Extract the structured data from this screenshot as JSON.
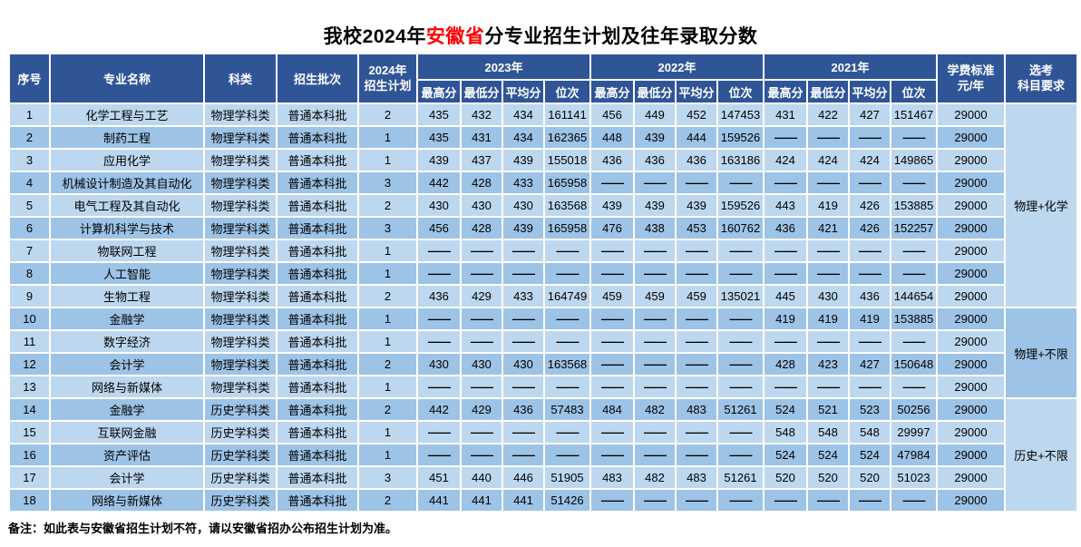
{
  "title": {
    "prefix": "我校2024年",
    "highlight": "安徽省",
    "suffix": "分专业招生计划及往年录取分数"
  },
  "header": {
    "no": "序号",
    "major": "专业名称",
    "category": "科类",
    "batch": "招生批次",
    "plan2024_line1": "2024年",
    "plan2024_line2": "招生计划",
    "year2023": "2023年",
    "year2022": "2022年",
    "year2021": "2021年",
    "sub": [
      "最高分",
      "最低分",
      "平均分",
      "位次"
    ],
    "fee_line1": "学费标准",
    "fee_line2": "元/年",
    "subject_line1": "选考",
    "subject_line2": "科目要求"
  },
  "dash": "——",
  "rows": [
    {
      "no": "1",
      "major": "化学工程与工艺",
      "category": "物理学科类",
      "batch": "普通本科批",
      "plan": "2",
      "s2023": [
        "435",
        "432",
        "434",
        "161141"
      ],
      "s2022": [
        "456",
        "449",
        "452",
        "147453"
      ],
      "s2021": [
        "431",
        "422",
        "427",
        "151467"
      ],
      "fee": "29000"
    },
    {
      "no": "2",
      "major": "制药工程",
      "category": "物理学科类",
      "batch": "普通本科批",
      "plan": "1",
      "s2023": [
        "435",
        "431",
        "434",
        "162365"
      ],
      "s2022": [
        "448",
        "439",
        "444",
        "159526"
      ],
      "s2021": [
        "——",
        "——",
        "——",
        "——"
      ],
      "fee": "29000"
    },
    {
      "no": "3",
      "major": "应用化学",
      "category": "物理学科类",
      "batch": "普通本科批",
      "plan": "1",
      "s2023": [
        "439",
        "437",
        "439",
        "155018"
      ],
      "s2022": [
        "436",
        "436",
        "436",
        "163186"
      ],
      "s2021": [
        "424",
        "424",
        "424",
        "149865"
      ],
      "fee": "29000"
    },
    {
      "no": "4",
      "major": "机械设计制造及其自动化",
      "category": "物理学科类",
      "batch": "普通本科批",
      "plan": "3",
      "s2023": [
        "442",
        "428",
        "433",
        "165958"
      ],
      "s2022": [
        "——",
        "——",
        "——",
        "——"
      ],
      "s2021": [
        "——",
        "——",
        "——",
        "——"
      ],
      "fee": "29000"
    },
    {
      "no": "5",
      "major": "电气工程及其自动化",
      "category": "物理学科类",
      "batch": "普通本科批",
      "plan": "2",
      "s2023": [
        "430",
        "430",
        "430",
        "163568"
      ],
      "s2022": [
        "439",
        "439",
        "439",
        "159526"
      ],
      "s2021": [
        "443",
        "419",
        "426",
        "153885"
      ],
      "fee": "29000"
    },
    {
      "no": "6",
      "major": "计算机科学与技术",
      "category": "物理学科类",
      "batch": "普通本科批",
      "plan": "3",
      "s2023": [
        "456",
        "428",
        "439",
        "165958"
      ],
      "s2022": [
        "476",
        "438",
        "453",
        "160762"
      ],
      "s2021": [
        "436",
        "421",
        "426",
        "152257"
      ],
      "fee": "29000"
    },
    {
      "no": "7",
      "major": "物联网工程",
      "category": "物理学科类",
      "batch": "普通本科批",
      "plan": "1",
      "s2023": [
        "——",
        "——",
        "——",
        "——"
      ],
      "s2022": [
        "——",
        "——",
        "——",
        "——"
      ],
      "s2021": [
        "——",
        "——",
        "——",
        "——"
      ],
      "fee": "29000"
    },
    {
      "no": "8",
      "major": "人工智能",
      "category": "物理学科类",
      "batch": "普通本科批",
      "plan": "1",
      "s2023": [
        "——",
        "——",
        "——",
        "——"
      ],
      "s2022": [
        "——",
        "——",
        "——",
        "——"
      ],
      "s2021": [
        "——",
        "——",
        "——",
        "——"
      ],
      "fee": "29000"
    },
    {
      "no": "9",
      "major": "生物工程",
      "category": "物理学科类",
      "batch": "普通本科批",
      "plan": "2",
      "s2023": [
        "436",
        "429",
        "433",
        "164749"
      ],
      "s2022": [
        "459",
        "459",
        "459",
        "135021"
      ],
      "s2021": [
        "445",
        "430",
        "436",
        "144654"
      ],
      "fee": "29000"
    },
    {
      "no": "10",
      "major": "金融学",
      "category": "物理学科类",
      "batch": "普通本科批",
      "plan": "1",
      "s2023": [
        "——",
        "——",
        "——",
        "——"
      ],
      "s2022": [
        "——",
        "——",
        "——",
        "——"
      ],
      "s2021": [
        "419",
        "419",
        "419",
        "153885"
      ],
      "fee": "29000"
    },
    {
      "no": "11",
      "major": "数字经济",
      "category": "物理学科类",
      "batch": "普通本科批",
      "plan": "1",
      "s2023": [
        "——",
        "——",
        "——",
        "——"
      ],
      "s2022": [
        "——",
        "——",
        "——",
        "——"
      ],
      "s2021": [
        "——",
        "——",
        "——",
        "——"
      ],
      "fee": "29000"
    },
    {
      "no": "12",
      "major": "会计学",
      "category": "物理学科类",
      "batch": "普通本科批",
      "plan": "2",
      "s2023": [
        "430",
        "430",
        "430",
        "163568"
      ],
      "s2022": [
        "——",
        "——",
        "——",
        "——"
      ],
      "s2021": [
        "428",
        "423",
        "427",
        "150648"
      ],
      "fee": "29000"
    },
    {
      "no": "13",
      "major": "网络与新媒体",
      "category": "物理学科类",
      "batch": "普通本科批",
      "plan": "1",
      "s2023": [
        "——",
        "——",
        "——",
        "——"
      ],
      "s2022": [
        "——",
        "——",
        "——",
        "——"
      ],
      "s2021": [
        "——",
        "——",
        "——",
        "——"
      ],
      "fee": "29000"
    },
    {
      "no": "14",
      "major": "金融学",
      "category": "历史学科类",
      "batch": "普通本科批",
      "plan": "2",
      "s2023": [
        "442",
        "429",
        "436",
        "57483"
      ],
      "s2022": [
        "484",
        "482",
        "483",
        "51261"
      ],
      "s2021": [
        "524",
        "521",
        "523",
        "50256"
      ],
      "fee": "29000"
    },
    {
      "no": "15",
      "major": "互联网金融",
      "category": "历史学科类",
      "batch": "普通本科批",
      "plan": "1",
      "s2023": [
        "——",
        "——",
        "——",
        "——"
      ],
      "s2022": [
        "——",
        "——",
        "——",
        "——"
      ],
      "s2021": [
        "548",
        "548",
        "548",
        "29997"
      ],
      "fee": "29000"
    },
    {
      "no": "16",
      "major": "资产评估",
      "category": "历史学科类",
      "batch": "普通本科批",
      "plan": "1",
      "s2023": [
        "——",
        "——",
        "——",
        "——"
      ],
      "s2022": [
        "——",
        "——",
        "——",
        "——"
      ],
      "s2021": [
        "524",
        "524",
        "524",
        "47984"
      ],
      "fee": "29000"
    },
    {
      "no": "17",
      "major": "会计学",
      "category": "历史学科类",
      "batch": "普通本科批",
      "plan": "3",
      "s2023": [
        "451",
        "440",
        "446",
        "51905"
      ],
      "s2022": [
        "483",
        "482",
        "483",
        "51261"
      ],
      "s2021": [
        "520",
        "520",
        "520",
        "51023"
      ],
      "fee": "29000"
    },
    {
      "no": "18",
      "major": "网络与新媒体",
      "category": "历史学科类",
      "batch": "普通本科批",
      "plan": "2",
      "s2023": [
        "441",
        "441",
        "441",
        "51426"
      ],
      "s2022": [
        "——",
        "——",
        "——",
        "——"
      ],
      "s2021": [
        "——",
        "——",
        "——",
        "——"
      ],
      "fee": "29000"
    }
  ],
  "subject_groups": [
    {
      "label": "物理+化学",
      "span": 9,
      "start": 0
    },
    {
      "label": "物理+不限",
      "span": 4,
      "start": 9
    },
    {
      "label": "历史+不限",
      "span": 5,
      "start": 13
    }
  ],
  "note": "备注：如此表与安徽省招生计划不符，请以安徽省招办公布招生计划为准。",
  "colors": {
    "header_bg": "#2f5597",
    "row_light": "#bdd7ee",
    "row_dark": "#9dc3e6",
    "title_highlight": "#ff0000",
    "dash": "#7f7f7f"
  }
}
